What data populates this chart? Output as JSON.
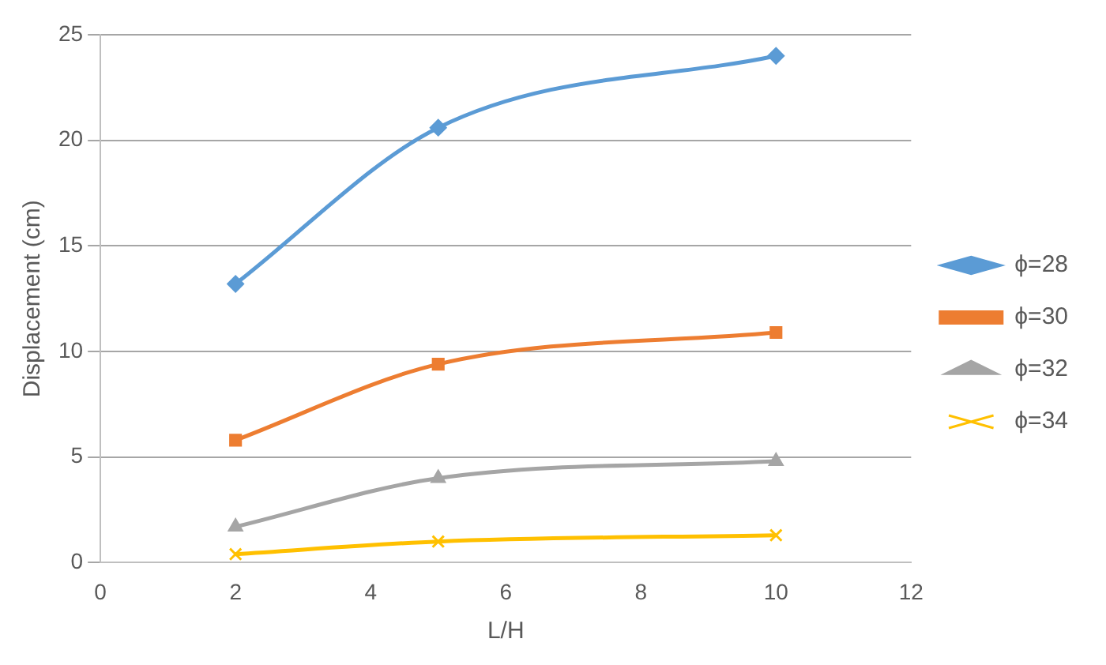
{
  "chart_data": {
    "type": "line",
    "xlabel": "L/H",
    "ylabel": "Displacement (cm)",
    "x": [
      2,
      5,
      10
    ],
    "series": [
      {
        "name": "ϕ=28",
        "color": "#5b9bd5",
        "values": [
          13.2,
          20.6,
          24.0
        ],
        "marker": "diamond"
      },
      {
        "name": "ϕ=30",
        "color": "#ed7d31",
        "values": [
          5.8,
          9.4,
          10.9
        ],
        "marker": "square"
      },
      {
        "name": "ϕ=32",
        "color": "#a5a5a5",
        "values": [
          1.7,
          4.0,
          4.8
        ],
        "marker": "triangle"
      },
      {
        "name": "ϕ=34",
        "color": "#ffc000",
        "values": [
          0.4,
          1.0,
          1.3
        ],
        "marker": "cross"
      }
    ],
    "xlim": [
      0,
      12
    ],
    "xticks": [
      0,
      2,
      4,
      6,
      8,
      10,
      12
    ],
    "ylim": [
      0,
      25
    ],
    "yticks": [
      0,
      5,
      10,
      15,
      20,
      25
    ],
    "grid": "y",
    "legend": "right"
  }
}
